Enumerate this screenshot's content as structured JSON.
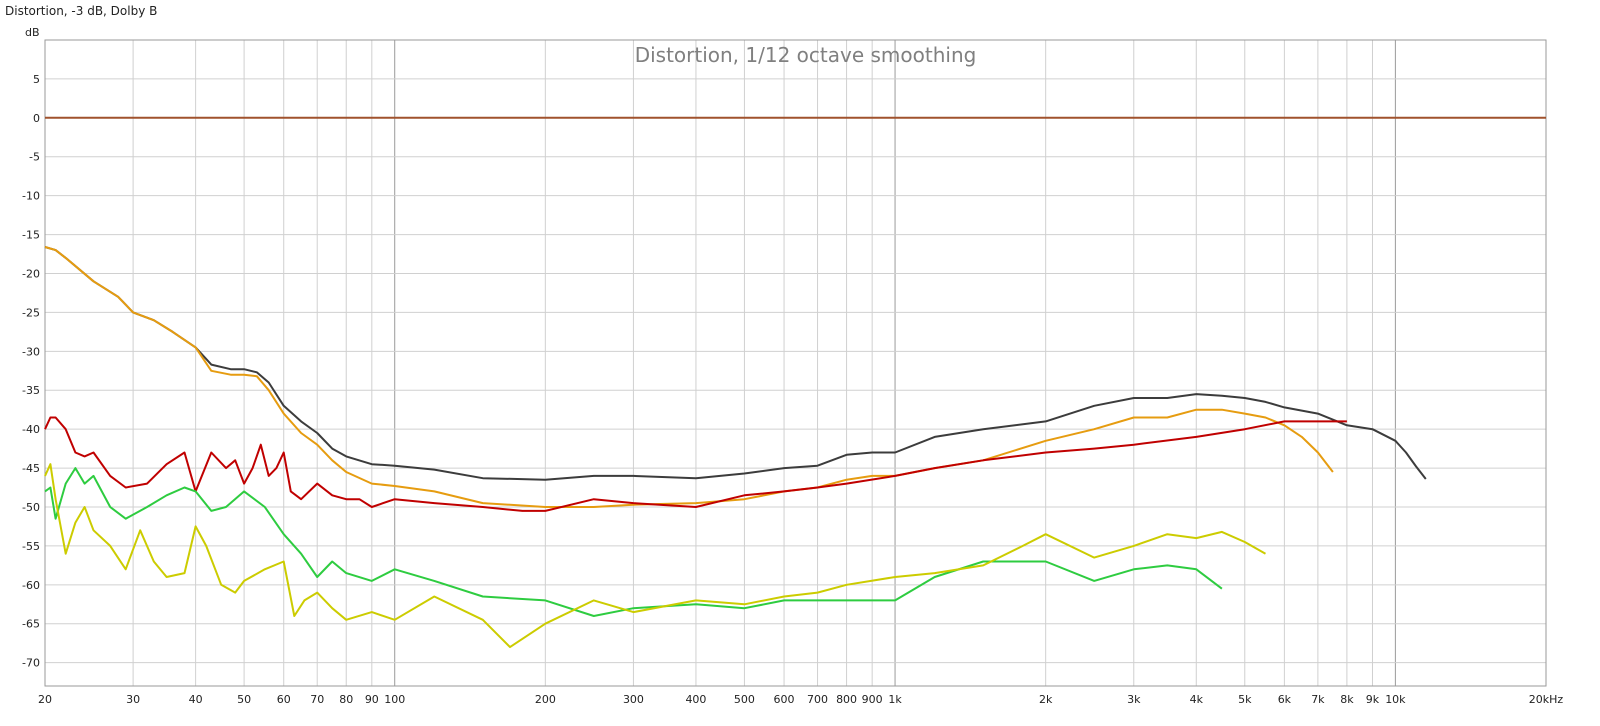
{
  "window_title": "Distortion, -3 dB, Dolby B",
  "chart_data": {
    "type": "line",
    "title": "Distortion, 1/12 octave smoothing",
    "ylabel": "dB",
    "xlabel": "",
    "xscale": "log",
    "xlim": [
      20,
      20000
    ],
    "ylim": [
      -73,
      10
    ],
    "grid": true,
    "x_tick_labels": [
      {
        "v": 20,
        "t": "20"
      },
      {
        "v": 30,
        "t": "30"
      },
      {
        "v": 40,
        "t": "40"
      },
      {
        "v": 50,
        "t": "50"
      },
      {
        "v": 60,
        "t": "60"
      },
      {
        "v": 70,
        "t": "70"
      },
      {
        "v": 80,
        "t": "80"
      },
      {
        "v": 90,
        "t": "90"
      },
      {
        "v": 100,
        "t": "100"
      },
      {
        "v": 200,
        "t": "200"
      },
      {
        "v": 300,
        "t": "300"
      },
      {
        "v": 400,
        "t": "400"
      },
      {
        "v": 500,
        "t": "500"
      },
      {
        "v": 600,
        "t": "600"
      },
      {
        "v": 700,
        "t": "700"
      },
      {
        "v": 800,
        "t": "800"
      },
      {
        "v": 900,
        "t": "900"
      },
      {
        "v": 1000,
        "t": "1k"
      },
      {
        "v": 2000,
        "t": "2k"
      },
      {
        "v": 3000,
        "t": "3k"
      },
      {
        "v": 4000,
        "t": "4k"
      },
      {
        "v": 5000,
        "t": "5k"
      },
      {
        "v": 6000,
        "t": "6k"
      },
      {
        "v": 7000,
        "t": "7k"
      },
      {
        "v": 8000,
        "t": "8k"
      },
      {
        "v": 9000,
        "t": "9k"
      },
      {
        "v": 10000,
        "t": "10k"
      },
      {
        "v": 20000,
        "t": "20kHz"
      }
    ],
    "y_ticks": [
      5,
      0,
      -5,
      -10,
      -15,
      -20,
      -25,
      -30,
      -35,
      -40,
      -45,
      -50,
      -55,
      -60,
      -65,
      -70
    ],
    "series": [
      {
        "color": "#a0522d",
        "width": 2,
        "x": [
          20,
          20000
        ],
        "y": [
          0,
          0
        ]
      },
      {
        "color": "#3c3c3c",
        "width": 2,
        "x": [
          20,
          21,
          22,
          25,
          28,
          30,
          33,
          36,
          40,
          43,
          47,
          50,
          53,
          56,
          60,
          65,
          70,
          75,
          80,
          90,
          100,
          120,
          150,
          200,
          250,
          300,
          400,
          500,
          600,
          700,
          800,
          900,
          1000,
          1200,
          1500,
          2000,
          2500,
          3000,
          3500,
          4000,
          4500,
          5000,
          5500,
          6000,
          7000,
          8000,
          9000,
          10000,
          10500,
          11000,
          11500
        ],
        "y": [
          -16.6,
          -17,
          -18,
          -21,
          -23,
          -25,
          -26,
          -27.5,
          -29.5,
          -31.7,
          -32.3,
          -32.3,
          -32.7,
          -34,
          -37,
          -39,
          -40.5,
          -42.5,
          -43.5,
          -44.5,
          -44.7,
          -45.2,
          -46.3,
          -46.5,
          -46,
          -46,
          -46.3,
          -45.7,
          -45,
          -44.7,
          -43.3,
          -43,
          -43,
          -41,
          -40,
          -39,
          -37,
          -36,
          -36,
          -35.5,
          -35.7,
          -36,
          -36.5,
          -37.2,
          -38,
          -39.5,
          -40,
          -41.5,
          -43,
          -44.8,
          -46.4
        ]
      },
      {
        "color": "#e69c10",
        "width": 2,
        "x": [
          20,
          21,
          22,
          25,
          28,
          30,
          33,
          36,
          40,
          43,
          47,
          50,
          53,
          56,
          60,
          65,
          70,
          75,
          80,
          90,
          100,
          120,
          150,
          200,
          250,
          300,
          400,
          500,
          600,
          700,
          800,
          900,
          1000,
          1200,
          1500,
          2000,
          2500,
          3000,
          3500,
          4000,
          4500,
          5000,
          5500,
          6000,
          6500,
          7000,
          7500
        ],
        "y": [
          -16.6,
          -17,
          -18,
          -21,
          -23,
          -25,
          -26,
          -27.5,
          -29.5,
          -32.5,
          -33,
          -33,
          -33.2,
          -35,
          -38,
          -40.5,
          -42,
          -44,
          -45.5,
          -47,
          -47.3,
          -48,
          -49.5,
          -50,
          -50,
          -49.7,
          -49.5,
          -49,
          -48,
          -47.5,
          -46.5,
          -46,
          -46,
          -45,
          -44,
          -41.5,
          -40,
          -38.5,
          -38.5,
          -37.5,
          -37.5,
          -38,
          -38.5,
          -39.5,
          -41,
          -43,
          -45.5
        ]
      },
      {
        "color": "#c00000",
        "width": 2,
        "x": [
          20,
          20.5,
          21,
          22,
          23,
          24,
          25,
          27,
          29,
          32,
          35,
          38,
          40,
          43,
          46,
          48,
          50,
          52,
          54,
          56,
          58,
          60,
          62,
          65,
          70,
          75,
          80,
          85,
          90,
          100,
          120,
          150,
          180,
          200,
          250,
          300,
          400,
          500,
          600,
          700,
          800,
          1000,
          1200,
          1500,
          2000,
          2500,
          3000,
          4000,
          5000,
          6000,
          7000,
          8000
        ],
        "y": [
          -40,
          -38.5,
          -38.5,
          -40,
          -43,
          -43.5,
          -43,
          -46,
          -47.5,
          -47,
          -44.5,
          -43,
          -48,
          -43,
          -45,
          -44,
          -47,
          -45,
          -42,
          -46,
          -45,
          -43,
          -48,
          -49,
          -47,
          -48.5,
          -49,
          -49,
          -50,
          -49,
          -49.5,
          -50,
          -50.5,
          -50.5,
          -49,
          -49.5,
          -50,
          -48.5,
          -48,
          -47.5,
          -47,
          -46,
          -45,
          -44,
          -43,
          -42.5,
          -42,
          -41,
          -40,
          -39,
          -39,
          -39
        ]
      },
      {
        "color": "#2ecc40",
        "width": 2,
        "x": [
          20,
          20.5,
          21,
          22,
          23,
          24,
          25,
          27,
          29,
          32,
          35,
          38,
          40,
          43,
          46,
          50,
          55,
          60,
          65,
          70,
          75,
          80,
          90,
          100,
          120,
          150,
          200,
          250,
          300,
          400,
          500,
          600,
          800,
          1000,
          1200,
          1500,
          2000,
          2500,
          3000,
          3500,
          4000,
          4500
        ],
        "y": [
          -48,
          -47.5,
          -51.5,
          -47,
          -45,
          -47,
          -46,
          -50,
          -51.5,
          -50,
          -48.5,
          -47.5,
          -48,
          -50.5,
          -50,
          -48,
          -50,
          -53.5,
          -56,
          -59,
          -57,
          -58.5,
          -59.5,
          -58,
          -59.5,
          -61.5,
          -62,
          -64,
          -63,
          -62.5,
          -63,
          -62,
          -62,
          -62,
          -59,
          -57,
          -57,
          -59.5,
          -58,
          -57.5,
          -58,
          -60.5
        ]
      },
      {
        "color": "#cccc00",
        "width": 2,
        "x": [
          20,
          20.5,
          21,
          22,
          23,
          24,
          25,
          27,
          29,
          31,
          33,
          35,
          38,
          40,
          42,
          45,
          48,
          50,
          55,
          60,
          63,
          66,
          70,
          75,
          80,
          90,
          100,
          120,
          150,
          170,
          200,
          250,
          300,
          400,
          500,
          600,
          700,
          800,
          1000,
          1200,
          1500,
          1800,
          2000,
          2500,
          3000,
          3500,
          4000,
          4500,
          5000,
          5500
        ],
        "y": [
          -46,
          -44.5,
          -49,
          -56,
          -52,
          -50,
          -53,
          -55,
          -58,
          -53,
          -57,
          -59,
          -58.5,
          -52.5,
          -55,
          -60,
          -61,
          -59.5,
          -58,
          -57,
          -64,
          -62,
          -61,
          -63,
          -64.5,
          -63.5,
          -64.5,
          -61.5,
          -64.5,
          -68,
          -65,
          -62,
          -63.5,
          -62,
          -62.5,
          -61.5,
          -61,
          -60,
          -59,
          -58.5,
          -57.5,
          -55,
          -53.5,
          -56.5,
          -55,
          -53.5,
          -54,
          -53.2,
          -54.5,
          -56
        ]
      }
    ]
  }
}
